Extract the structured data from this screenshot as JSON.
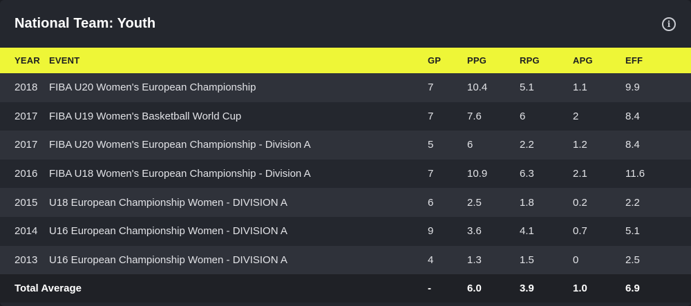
{
  "panel": {
    "title": "National Team: Youth",
    "info_icon": "info-circle-icon"
  },
  "table": {
    "columns": [
      "YEAR",
      "EVENT",
      "GP",
      "PPG",
      "RPG",
      "APG",
      "EFF"
    ],
    "rows": [
      {
        "year": "2018",
        "event": "FIBA U20 Women's European Championship",
        "gp": "7",
        "ppg": "10.4",
        "rpg": "5.1",
        "apg": "1.1",
        "eff": "9.9"
      },
      {
        "year": "2017",
        "event": "FIBA U19 Women's Basketball World Cup",
        "gp": "7",
        "ppg": "7.6",
        "rpg": "6",
        "apg": "2",
        "eff": "8.4"
      },
      {
        "year": "2017",
        "event": "FIBA U20 Women's European Championship - Division A",
        "gp": "5",
        "ppg": "6",
        "rpg": "2.2",
        "apg": "1.2",
        "eff": "8.4"
      },
      {
        "year": "2016",
        "event": "FIBA U18 Women's European Championship - Division A",
        "gp": "7",
        "ppg": "10.9",
        "rpg": "6.3",
        "apg": "2.1",
        "eff": "11.6"
      },
      {
        "year": "2015",
        "event": "U18 European Championship Women - DIVISION A",
        "gp": "6",
        "ppg": "2.5",
        "rpg": "1.8",
        "apg": "0.2",
        "eff": "2.2"
      },
      {
        "year": "2014",
        "event": "U16 European Championship Women - DIVISION A",
        "gp": "9",
        "ppg": "3.6",
        "rpg": "4.1",
        "apg": "0.7",
        "eff": "5.1"
      },
      {
        "year": "2013",
        "event": "U16 European Championship Women - DIVISION A",
        "gp": "4",
        "ppg": "1.3",
        "rpg": "1.5",
        "apg": "0",
        "eff": "2.5"
      }
    ],
    "footer": {
      "label": "Total Average",
      "gp": "-",
      "ppg": "6.0",
      "rpg": "3.9",
      "apg": "1.0",
      "eff": "6.9"
    }
  },
  "colors": {
    "header_accent": "#eef637",
    "background": "#24272e",
    "row_alt": "#2f323a"
  }
}
